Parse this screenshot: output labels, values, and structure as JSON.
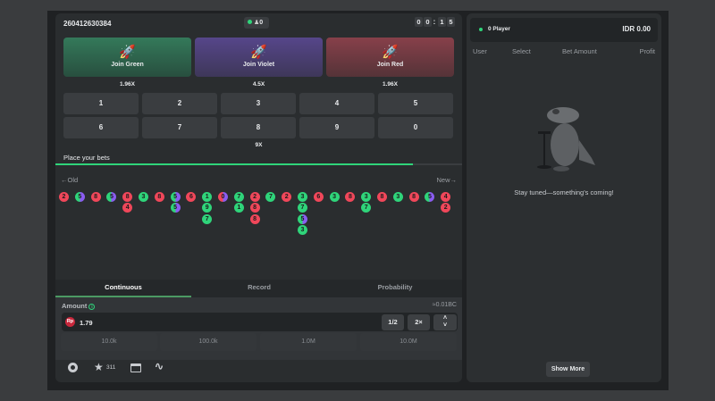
{
  "game": {
    "round_id": "260412630384",
    "online_count": "0",
    "timer": [
      "0",
      "0",
      ":",
      "1",
      "5"
    ]
  },
  "join_buttons": [
    {
      "label": "Join Green",
      "multiplier": "1.96X",
      "color": "#2f6e4f"
    },
    {
      "label": "Join Violet",
      "multiplier": "4.5X",
      "color": "#4e3f7a"
    },
    {
      "label": "Join Red",
      "multiplier": "1.96X",
      "color": "#7a3a40"
    }
  ],
  "numbers": [
    "1",
    "2",
    "3",
    "4",
    "5",
    "6",
    "7",
    "8",
    "9",
    "0"
  ],
  "number_multiplier": "9X",
  "status": "Place your bets",
  "countdown_progress": 0.88,
  "history": {
    "old_label": "Old",
    "new_label": "New",
    "columns": [
      [
        "2"
      ],
      [
        "5"
      ],
      [
        "8"
      ],
      [
        "5"
      ],
      [
        "8",
        "4"
      ],
      [
        "3"
      ],
      [
        "8"
      ],
      [
        "5",
        "5"
      ],
      [
        "6"
      ],
      [
        "1",
        "9",
        "7"
      ],
      [
        "0"
      ],
      [
        "7",
        "1"
      ],
      [
        "2",
        "8",
        "8"
      ],
      [
        "7"
      ],
      [
        "2"
      ],
      [
        "3",
        "7",
        "5",
        "3"
      ],
      [
        "6"
      ],
      [
        "3"
      ],
      [
        "8"
      ],
      [
        "3",
        "7"
      ],
      [
        "8"
      ],
      [
        "3"
      ],
      [
        "8"
      ],
      [
        "5"
      ],
      [
        "4",
        "2"
      ]
    ]
  },
  "colors": {
    "green": "#2fd47a",
    "red": "#f0475a",
    "violet": "#8a5cf0",
    "accent": "#2fd47a"
  },
  "tabs": [
    "Continuous",
    "Record",
    "Probability"
  ],
  "amount": {
    "label": "Amount",
    "conversion": "≈0.01BC",
    "currency_icon": "Rp",
    "value": "1.79",
    "half": "1/2",
    "double": "2×",
    "presets": [
      "10.0k",
      "100.0k",
      "1.0M",
      "10.0M"
    ]
  },
  "footer": {
    "favorites_count": "311"
  },
  "players": {
    "count_label": "0 Player",
    "total": "IDR 0.00",
    "columns": [
      "User",
      "Select",
      "Bet Amount",
      "Profit"
    ],
    "empty_message": "Stay tuned—something's coming!",
    "show_more": "Show More"
  }
}
